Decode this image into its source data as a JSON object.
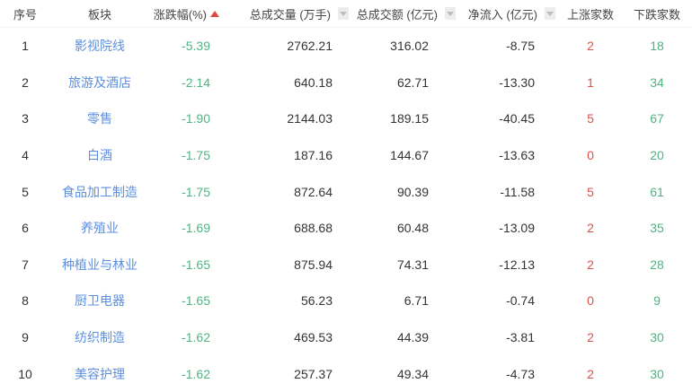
{
  "table": {
    "headers": {
      "no": "序号",
      "sector": "板块",
      "change": "涨跌幅(%)",
      "volume": "总成交量 (万手)",
      "turnover": "总成交额 (亿元)",
      "net_inflow": "净流入 (亿元)",
      "up": "上涨家数",
      "down": "下跌家数"
    },
    "sort": {
      "active_column": "涨跌幅(%)",
      "direction": "asc",
      "inactive_sortable_columns": [
        "总成交量 (万手)",
        "总成交额 (亿元)",
        "净流入 (亿元)"
      ]
    },
    "colors": {
      "link_blue": "#5c8fdd",
      "down_green": "#52b284",
      "up_red": "#d9544c",
      "sort_active_red": "#dc4b41",
      "sort_inactive_box": "#ececec",
      "sort_inactive_arrow": "#bdbdbd",
      "header_text": "#444444",
      "body_text": "#333333"
    },
    "rows": [
      {
        "no": "1",
        "sector": "影视院线",
        "change": "-5.39",
        "volume": "2762.21",
        "turnover": "316.02",
        "net_inflow": "-8.75",
        "up": "2",
        "down": "18"
      },
      {
        "no": "2",
        "sector": "旅游及酒店",
        "change": "-2.14",
        "volume": "640.18",
        "turnover": "62.71",
        "net_inflow": "-13.30",
        "up": "1",
        "down": "34"
      },
      {
        "no": "3",
        "sector": "零售",
        "change": "-1.90",
        "volume": "2144.03",
        "turnover": "189.15",
        "net_inflow": "-40.45",
        "up": "5",
        "down": "67"
      },
      {
        "no": "4",
        "sector": "白酒",
        "change": "-1.75",
        "volume": "187.16",
        "turnover": "144.67",
        "net_inflow": "-13.63",
        "up": "0",
        "down": "20"
      },
      {
        "no": "5",
        "sector": "食品加工制造",
        "change": "-1.75",
        "volume": "872.64",
        "turnover": "90.39",
        "net_inflow": "-11.58",
        "up": "5",
        "down": "61"
      },
      {
        "no": "6",
        "sector": "养殖业",
        "change": "-1.69",
        "volume": "688.68",
        "turnover": "60.48",
        "net_inflow": "-13.09",
        "up": "2",
        "down": "35"
      },
      {
        "no": "7",
        "sector": "种植业与林业",
        "change": "-1.65",
        "volume": "875.94",
        "turnover": "74.31",
        "net_inflow": "-12.13",
        "up": "2",
        "down": "28"
      },
      {
        "no": "8",
        "sector": "厨卫电器",
        "change": "-1.65",
        "volume": "56.23",
        "turnover": "6.71",
        "net_inflow": "-0.74",
        "up": "0",
        "down": "9"
      },
      {
        "no": "9",
        "sector": "纺织制造",
        "change": "-1.62",
        "volume": "469.53",
        "turnover": "44.39",
        "net_inflow": "-3.81",
        "up": "2",
        "down": "30"
      },
      {
        "no": "10",
        "sector": "美容护理",
        "change": "-1.62",
        "volume": "257.37",
        "turnover": "49.34",
        "net_inflow": "-4.73",
        "up": "2",
        "down": "30"
      }
    ]
  }
}
